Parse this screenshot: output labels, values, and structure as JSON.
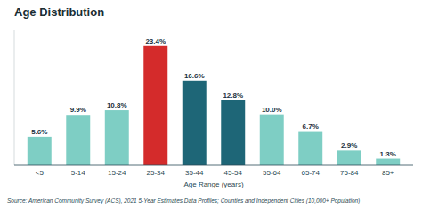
{
  "chart_data": {
    "type": "bar",
    "title": "Age Distribution",
    "categories": [
      "<5",
      "5-14",
      "15-24",
      "25-34",
      "35-44",
      "45-54",
      "55-64",
      "65-74",
      "75-84",
      "85+"
    ],
    "values": [
      5.6,
      9.9,
      10.8,
      23.4,
      16.6,
      12.8,
      10.0,
      6.7,
      2.9,
      1.3
    ],
    "value_labels": [
      "5.6%",
      "9.9%",
      "10.8%",
      "23.4%",
      "16.6%",
      "12.8%",
      "10.0%",
      "6.7%",
      "2.9%",
      "1.3%"
    ],
    "colors": [
      "#7ecec4",
      "#7ecec4",
      "#7ecec4",
      "#d42b2b",
      "#1e6677",
      "#1e6677",
      "#7ecec4",
      "#7ecec4",
      "#7ecec4",
      "#7ecec4"
    ],
    "xlabel": "Age Range (years)",
    "ylim": [
      0,
      26.5
    ],
    "grid": false,
    "data_labels": true,
    "tick_labels": "x",
    "annotations": [
      "Source: American Community Survey (ACS), 2021 5-Year Estimates Data Profiles; Counties and Independent Cities (10,000+ Population)"
    ]
  }
}
